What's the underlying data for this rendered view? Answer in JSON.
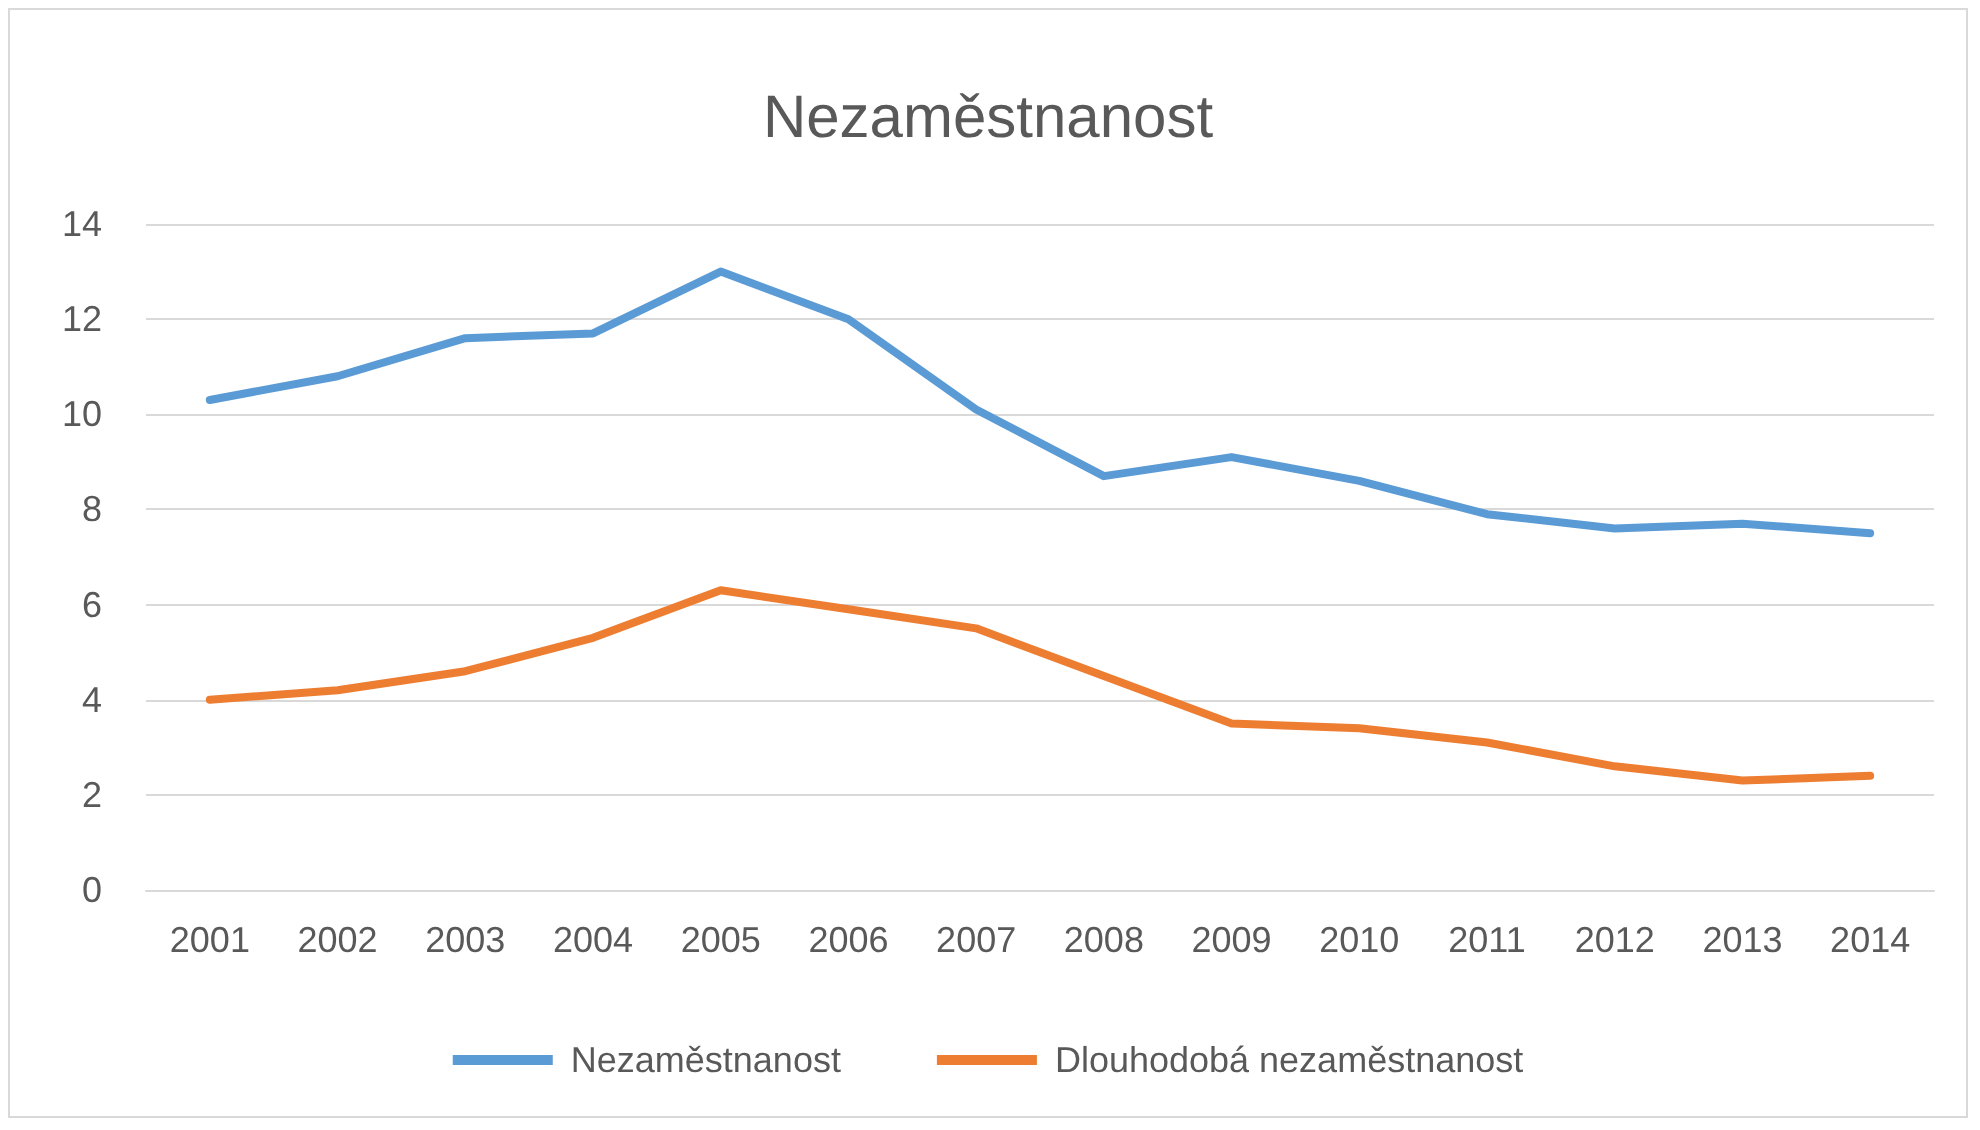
{
  "chart_data": {
    "type": "line",
    "title": "Nezaměstnanost",
    "categories": [
      "2001",
      "2002",
      "2003",
      "2004",
      "2005",
      "2006",
      "2007",
      "2008",
      "2009",
      "2010",
      "2011",
      "2012",
      "2013",
      "2014"
    ],
    "series": [
      {
        "name": "Nezaměstnanost",
        "color": "#5b9bd5",
        "values": [
          10.3,
          10.8,
          11.6,
          11.7,
          13.0,
          12.0,
          10.1,
          8.7,
          9.1,
          8.6,
          7.9,
          7.6,
          7.7,
          7.5
        ]
      },
      {
        "name": "Dlouhodobá nezaměstnanost",
        "color": "#ed7d31",
        "values": [
          4.0,
          4.2,
          4.6,
          5.3,
          6.3,
          5.9,
          5.5,
          4.5,
          3.5,
          3.4,
          3.1,
          2.6,
          2.3,
          2.4
        ]
      }
    ],
    "ylim": [
      0,
      14
    ],
    "yticks": [
      0,
      2,
      4,
      6,
      8,
      10,
      12,
      14
    ],
    "grid": "y",
    "legend": "bottom",
    "marker": "none",
    "line_style": "solid"
  }
}
